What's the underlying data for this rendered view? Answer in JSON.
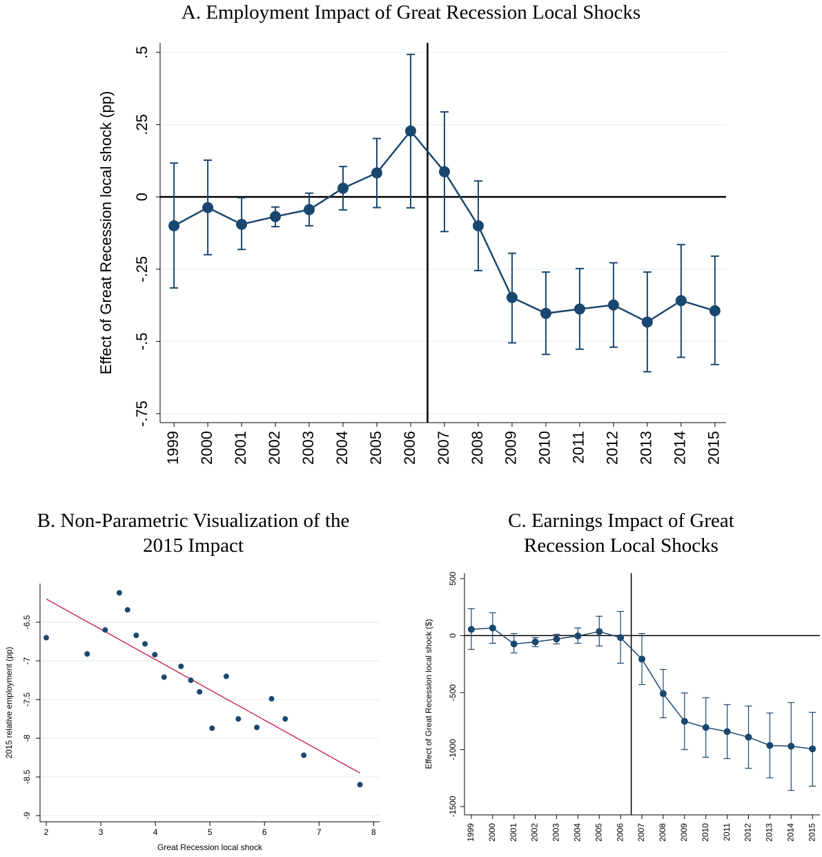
{
  "chart_data": [
    {
      "type": "line",
      "title": "A. Employment Impact of Great Recession Local Shocks",
      "y_label": "Effect of Great Recession local shock (pp)",
      "x": [
        1999,
        2000,
        2001,
        2002,
        2003,
        2004,
        2005,
        2006,
        2007,
        2008,
        2009,
        2010,
        2011,
        2012,
        2013,
        2014,
        2015
      ],
      "series": [
        {
          "color": "#1a476f",
          "values": [
            -0.1,
            -0.037,
            -0.095,
            -0.068,
            -0.044,
            0.03,
            0.083,
            0.228,
            0.087,
            -0.1,
            -0.348,
            -0.403,
            -0.388,
            -0.374,
            -0.433,
            -0.359,
            -0.394
          ],
          "lower": [
            -0.315,
            -0.2,
            -0.182,
            -0.103,
            -0.1,
            -0.045,
            -0.037,
            -0.038,
            -0.12,
            -0.255,
            -0.505,
            -0.545,
            -0.527,
            -0.52,
            -0.605,
            -0.555,
            -0.58
          ],
          "upper": [
            0.117,
            0.127,
            -0.003,
            -0.035,
            0.013,
            0.105,
            0.202,
            0.493,
            0.294,
            0.055,
            -0.195,
            -0.26,
            -0.248,
            -0.228,
            -0.26,
            -0.165,
            -0.205
          ]
        }
      ],
      "xlim": [
        1998.59,
        2015.33
      ],
      "xticks": [
        1999,
        2000,
        2001,
        2002,
        2003,
        2004,
        2005,
        2006,
        2007,
        2008,
        2009,
        2010,
        2011,
        2012,
        2013,
        2014,
        2015
      ],
      "ylim": [
        -0.781,
        0.533
      ],
      "yticks": [
        {
          "value": 0.5,
          "label": ".5"
        },
        {
          "value": 0.25,
          "label": ".25"
        },
        0,
        {
          "value": -0.25,
          "label": "-.25"
        },
        {
          "value": -0.5,
          "label": "-.5"
        },
        {
          "value": -0.75,
          "label": "-.75"
        }
      ],
      "hline": 0,
      "vline": 2006.5,
      "grid": true
    },
    {
      "type": "scatter",
      "title": "B. Non-Parametric Visualization of the 2015 Impact",
      "x_label": "Great Recession local shock",
      "y_label": "2015 relative employment (pp)",
      "x": [
        2.0,
        2.75,
        3.08,
        3.34,
        3.49,
        3.65,
        3.81,
        3.99,
        4.16,
        4.47,
        4.65,
        4.81,
        5.04,
        5.3,
        5.52,
        5.86,
        6.13,
        6.38,
        6.72,
        7.75
      ],
      "series": [
        {
          "color": "#1a476f",
          "values": [
            -6.7,
            -6.91,
            -6.6,
            -6.12,
            -6.34,
            -6.67,
            -6.78,
            -6.92,
            -7.21,
            -7.07,
            -7.25,
            -7.4,
            -7.87,
            -7.2,
            -7.75,
            -7.86,
            -7.49,
            -7.75,
            -8.22,
            -8.6
          ]
        }
      ],
      "fit_line": {
        "x": [
          2.0,
          7.75
        ],
        "y": [
          -6.2,
          -8.45
        ],
        "color": "#c0143c"
      },
      "xlim": [
        1.886,
        8.11
      ],
      "xticks": [
        2,
        3,
        4,
        5,
        6,
        7,
        8
      ],
      "ylim": [
        -9.08,
        -6.0
      ],
      "yticks": [
        -6.5,
        -7,
        -7.5,
        -8,
        -8.5,
        -9
      ],
      "grid": true
    },
    {
      "type": "line",
      "title": "C. Earnings Impact of Great Recession Local Shocks",
      "y_label": "Effect of Great Recession local shock ($)",
      "x": [
        1999,
        2000,
        2001,
        2002,
        2003,
        2004,
        2005,
        2006,
        2007,
        2008,
        2009,
        2010,
        2011,
        2012,
        2013,
        2014,
        2015
      ],
      "series": [
        {
          "color": "#1a476f",
          "values": [
            55,
            67,
            -73,
            -55,
            -30,
            -3,
            36,
            -18,
            -206,
            -509,
            -752,
            -806,
            -842,
            -891,
            -964,
            -970,
            -994
          ],
          "lower": [
            -121,
            -67,
            -152,
            -97,
            -73,
            -67,
            -91,
            -242,
            -430,
            -721,
            -1000,
            -1067,
            -1079,
            -1164,
            -1248,
            -1358,
            -1321
          ],
          "upper": [
            236,
            200,
            18,
            -18,
            12,
            67,
            170,
            212,
            18,
            -297,
            -503,
            -545,
            -606,
            -618,
            -679,
            -588,
            -673
          ]
        }
      ],
      "xlim": [
        1998.68,
        2015.35
      ],
      "xticks": [
        1999,
        2000,
        2001,
        2002,
        2003,
        2004,
        2005,
        2006,
        2007,
        2008,
        2009,
        2010,
        2011,
        2012,
        2013,
        2014,
        2015
      ],
      "ylim": [
        -1573,
        548
      ],
      "yticks": [
        500,
        0,
        -500,
        -1000,
        -1500
      ],
      "hline": 0,
      "vline": 2006.5,
      "grid": false
    }
  ]
}
